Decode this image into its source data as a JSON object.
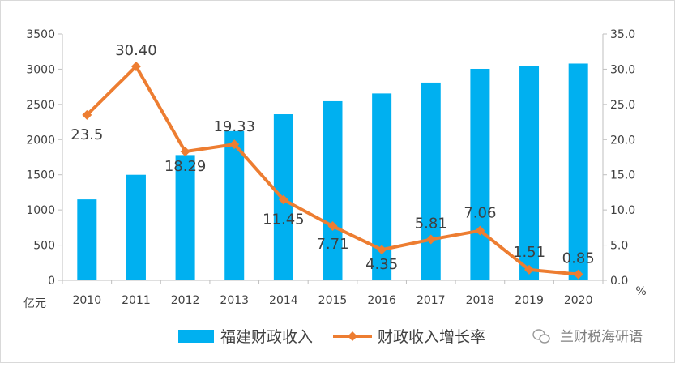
{
  "chart_data": {
    "type": "bar",
    "categories": [
      "2010",
      "2011",
      "2012",
      "2013",
      "2014",
      "2015",
      "2016",
      "2017",
      "2018",
      "2019",
      "2020"
    ],
    "series": [
      {
        "name": "福建财政收入",
        "type": "bar",
        "axis": "left",
        "color": "#00b0f0",
        "values": [
          1150,
          1500,
          1780,
          2120,
          2360,
          2545,
          2655,
          2810,
          3005,
          3050,
          3080
        ]
      },
      {
        "name": "财政收入增长率",
        "type": "line",
        "axis": "right",
        "color": "#ed7d31",
        "values": [
          23.5,
          30.4,
          18.29,
          19.33,
          11.45,
          7.71,
          4.35,
          5.81,
          7.06,
          1.51,
          0.85
        ],
        "labels": [
          "23.5",
          "30.40",
          "18.29",
          "19.33",
          "11.45",
          "7.71",
          "4.35",
          "5.81",
          "7.06",
          "1.51",
          "0.85"
        ]
      }
    ],
    "y_left": {
      "unit": "亿元",
      "ylim": [
        0,
        3500
      ],
      "ticks": [
        "0",
        "500",
        "1000",
        "1500",
        "2000",
        "2500",
        "3000",
        "3500"
      ]
    },
    "y_right": {
      "unit": "%",
      "ylim": [
        0,
        35
      ],
      "ticks": [
        "0.0",
        "5.0",
        "10.0",
        "15.0",
        "20.0",
        "25.0",
        "30.0",
        "35.0"
      ]
    },
    "grid": false,
    "legend_position": "bottom"
  },
  "watermark": {
    "text": "兰财税海研语"
  }
}
